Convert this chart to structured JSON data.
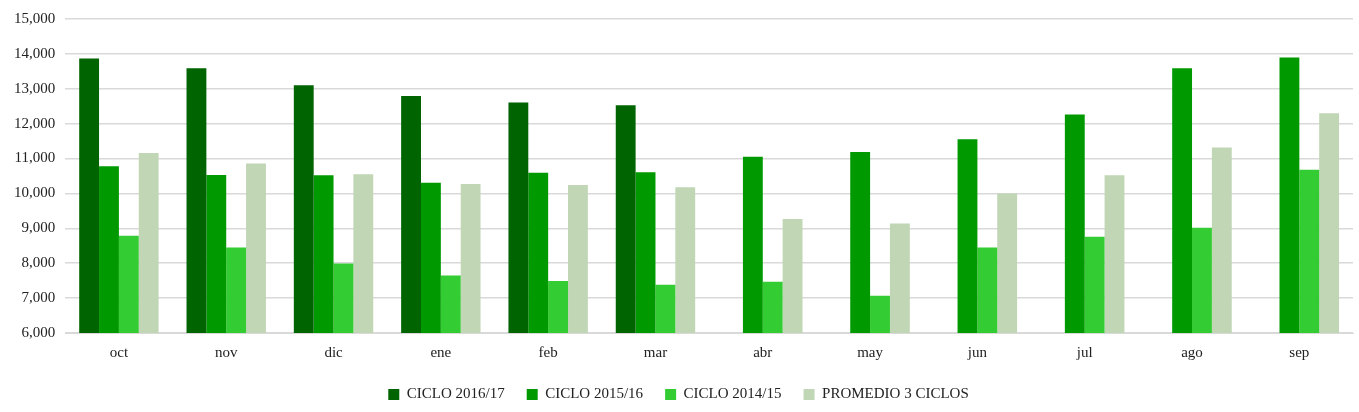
{
  "chart_data": {
    "type": "bar",
    "categories": [
      "oct",
      "nov",
      "dic",
      "ene",
      "feb",
      "mar",
      "abr",
      "may",
      "jun",
      "jul",
      "ago",
      "sep"
    ],
    "series": [
      {
        "name": "CICLO 2016/17",
        "color": "#006400",
        "values": [
          13870,
          13590,
          13100,
          12790,
          12610,
          12530,
          null,
          null,
          null,
          null,
          null,
          null
        ]
      },
      {
        "name": "CICLO 2015/16",
        "color": "#009900",
        "values": [
          10780,
          10530,
          10520,
          10310,
          10590,
          10610,
          11050,
          11190,
          11550,
          12260,
          13590,
          13900
        ]
      },
      {
        "name": "CICLO 2014/15",
        "color": "#33cc33",
        "values": [
          8790,
          8450,
          7990,
          7650,
          7490,
          7380,
          7470,
          7070,
          8450,
          8760,
          9020,
          10680
        ]
      },
      {
        "name": "PROMEDIO 3 CICLOS",
        "color": "#c0d6b4",
        "values": [
          11160,
          10860,
          10550,
          10270,
          10240,
          10180,
          9270,
          9140,
          10000,
          10520,
          11320,
          12300
        ]
      }
    ],
    "ylim": [
      6000,
      15000
    ],
    "yticks": [
      {
        "value": 6000,
        "label": "6,000"
      },
      {
        "value": 7000,
        "label": "7,000"
      },
      {
        "value": 8000,
        "label": "8,000"
      },
      {
        "value": 9000,
        "label": "9,000"
      },
      {
        "value": 10000,
        "label": "10,000"
      },
      {
        "value": 11000,
        "label": "11,000"
      },
      {
        "value": 12000,
        "label": "12,000"
      },
      {
        "value": 13000,
        "label": "13,000"
      },
      {
        "value": 14000,
        "label": "14,000"
      },
      {
        "value": 15000,
        "label": "15,000"
      }
    ],
    "grid": "y",
    "legend": "bottom"
  }
}
